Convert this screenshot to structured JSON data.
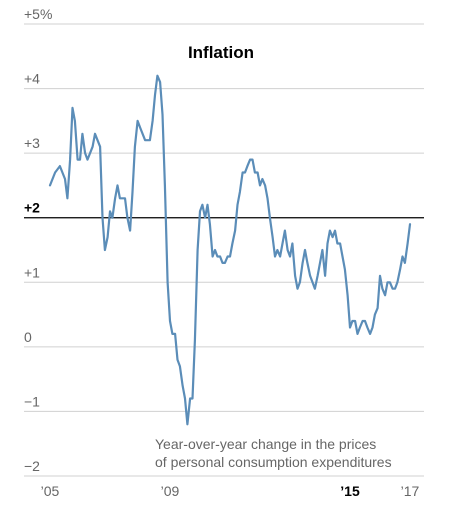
{
  "chart_data": {
    "type": "line",
    "title": "Inflation",
    "annotation": [
      "Year-over-year change in the prices",
      "of personal consumption expenditures"
    ],
    "ylim": [
      -2,
      5
    ],
    "xlim": [
      2005,
      2017.4
    ],
    "y_ticks": [
      {
        "value": 5,
        "label": "+5%"
      },
      {
        "value": 4,
        "label": "+4"
      },
      {
        "value": 3,
        "label": "+3"
      },
      {
        "value": 2,
        "label": "+2",
        "bold": true
      },
      {
        "value": 1,
        "label": "+1"
      },
      {
        "value": 0,
        "label": "0"
      },
      {
        "value": -1,
        "label": "−1"
      },
      {
        "value": -2,
        "label": "−2"
      }
    ],
    "x_ticks": [
      {
        "value": 2005,
        "label": "’05"
      },
      {
        "value": 2009,
        "label": "’09"
      },
      {
        "value": 2015,
        "label": "’15",
        "bold": true
      },
      {
        "value": 2017,
        "label": "’17"
      }
    ],
    "reference_line": 2,
    "colors": {
      "line": "#5b8db8",
      "grid": "#d0d0d0",
      "reference": "#000000"
    },
    "series": [
      {
        "points": [
          [
            2005.0,
            2.5
          ],
          [
            2005.17,
            2.7
          ],
          [
            2005.33,
            2.8
          ],
          [
            2005.5,
            2.6
          ],
          [
            2005.58,
            2.3
          ],
          [
            2005.67,
            2.9
          ],
          [
            2005.75,
            3.7
          ],
          [
            2005.83,
            3.5
          ],
          [
            2005.92,
            2.9
          ],
          [
            2006.0,
            2.9
          ],
          [
            2006.08,
            3.3
          ],
          [
            2006.17,
            3.0
          ],
          [
            2006.25,
            2.9
          ],
          [
            2006.42,
            3.1
          ],
          [
            2006.5,
            3.3
          ],
          [
            2006.67,
            3.1
          ],
          [
            2006.75,
            2.0
          ],
          [
            2006.83,
            1.5
          ],
          [
            2006.92,
            1.7
          ],
          [
            2007.0,
            2.1
          ],
          [
            2007.08,
            2.0
          ],
          [
            2007.17,
            2.3
          ],
          [
            2007.25,
            2.5
          ],
          [
            2007.33,
            2.3
          ],
          [
            2007.5,
            2.3
          ],
          [
            2007.58,
            2.0
          ],
          [
            2007.67,
            1.8
          ],
          [
            2007.75,
            2.4
          ],
          [
            2007.83,
            3.1
          ],
          [
            2007.92,
            3.5
          ],
          [
            2008.0,
            3.4
          ],
          [
            2008.17,
            3.2
          ],
          [
            2008.33,
            3.2
          ],
          [
            2008.42,
            3.5
          ],
          [
            2008.5,
            3.9
          ],
          [
            2008.58,
            4.2
          ],
          [
            2008.67,
            4.1
          ],
          [
            2008.75,
            3.6
          ],
          [
            2008.83,
            2.5
          ],
          [
            2008.92,
            1.0
          ],
          [
            2009.0,
            0.4
          ],
          [
            2009.08,
            0.2
          ],
          [
            2009.17,
            0.2
          ],
          [
            2009.25,
            -0.2
          ],
          [
            2009.33,
            -0.3
          ],
          [
            2009.42,
            -0.6
          ],
          [
            2009.5,
            -0.8
          ],
          [
            2009.58,
            -1.2
          ],
          [
            2009.67,
            -0.8
          ],
          [
            2009.75,
            -0.8
          ],
          [
            2009.83,
            0.1
          ],
          [
            2009.92,
            1.5
          ],
          [
            2010.0,
            2.1
          ],
          [
            2010.08,
            2.2
          ],
          [
            2010.17,
            2.0
          ],
          [
            2010.25,
            2.2
          ],
          [
            2010.33,
            1.9
          ],
          [
            2010.42,
            1.4
          ],
          [
            2010.5,
            1.5
          ],
          [
            2010.58,
            1.4
          ],
          [
            2010.67,
            1.4
          ],
          [
            2010.75,
            1.3
          ],
          [
            2010.83,
            1.3
          ],
          [
            2010.92,
            1.4
          ],
          [
            2011.0,
            1.4
          ],
          [
            2011.08,
            1.6
          ],
          [
            2011.17,
            1.8
          ],
          [
            2011.25,
            2.2
          ],
          [
            2011.33,
            2.4
          ],
          [
            2011.42,
            2.7
          ],
          [
            2011.5,
            2.7
          ],
          [
            2011.58,
            2.8
          ],
          [
            2011.67,
            2.9
          ],
          [
            2011.75,
            2.9
          ],
          [
            2011.83,
            2.7
          ],
          [
            2011.92,
            2.7
          ],
          [
            2012.0,
            2.5
          ],
          [
            2012.08,
            2.6
          ],
          [
            2012.17,
            2.5
          ],
          [
            2012.25,
            2.3
          ],
          [
            2012.33,
            2.0
          ],
          [
            2012.42,
            1.7
          ],
          [
            2012.5,
            1.4
          ],
          [
            2012.58,
            1.5
          ],
          [
            2012.67,
            1.4
          ],
          [
            2012.75,
            1.6
          ],
          [
            2012.83,
            1.8
          ],
          [
            2012.92,
            1.5
          ],
          [
            2013.0,
            1.4
          ],
          [
            2013.08,
            1.6
          ],
          [
            2013.17,
            1.1
          ],
          [
            2013.25,
            0.9
          ],
          [
            2013.33,
            1.0
          ],
          [
            2013.42,
            1.3
          ],
          [
            2013.5,
            1.5
          ],
          [
            2013.58,
            1.3
          ],
          [
            2013.67,
            1.1
          ],
          [
            2013.75,
            1.0
          ],
          [
            2013.83,
            0.9
          ],
          [
            2013.92,
            1.1
          ],
          [
            2014.0,
            1.3
          ],
          [
            2014.08,
            1.5
          ],
          [
            2014.17,
            1.1
          ],
          [
            2014.25,
            1.6
          ],
          [
            2014.33,
            1.8
          ],
          [
            2014.42,
            1.7
          ],
          [
            2014.5,
            1.8
          ],
          [
            2014.58,
            1.6
          ],
          [
            2014.67,
            1.6
          ],
          [
            2014.75,
            1.4
          ],
          [
            2014.83,
            1.2
          ],
          [
            2014.92,
            0.8
          ],
          [
            2015.0,
            0.3
          ],
          [
            2015.08,
            0.4
          ],
          [
            2015.17,
            0.4
          ],
          [
            2015.25,
            0.2
          ],
          [
            2015.33,
            0.3
          ],
          [
            2015.42,
            0.4
          ],
          [
            2015.5,
            0.4
          ],
          [
            2015.58,
            0.3
          ],
          [
            2015.67,
            0.2
          ],
          [
            2015.75,
            0.3
          ],
          [
            2015.83,
            0.5
          ],
          [
            2015.92,
            0.6
          ],
          [
            2016.0,
            1.1
          ],
          [
            2016.08,
            0.9
          ],
          [
            2016.17,
            0.8
          ],
          [
            2016.25,
            1.0
          ],
          [
            2016.33,
            1.0
          ],
          [
            2016.42,
            0.9
          ],
          [
            2016.5,
            0.9
          ],
          [
            2016.58,
            1.0
          ],
          [
            2016.67,
            1.2
          ],
          [
            2016.75,
            1.4
          ],
          [
            2016.83,
            1.3
          ],
          [
            2016.92,
            1.6
          ],
          [
            2017.0,
            1.9
          ]
        ]
      }
    ]
  }
}
